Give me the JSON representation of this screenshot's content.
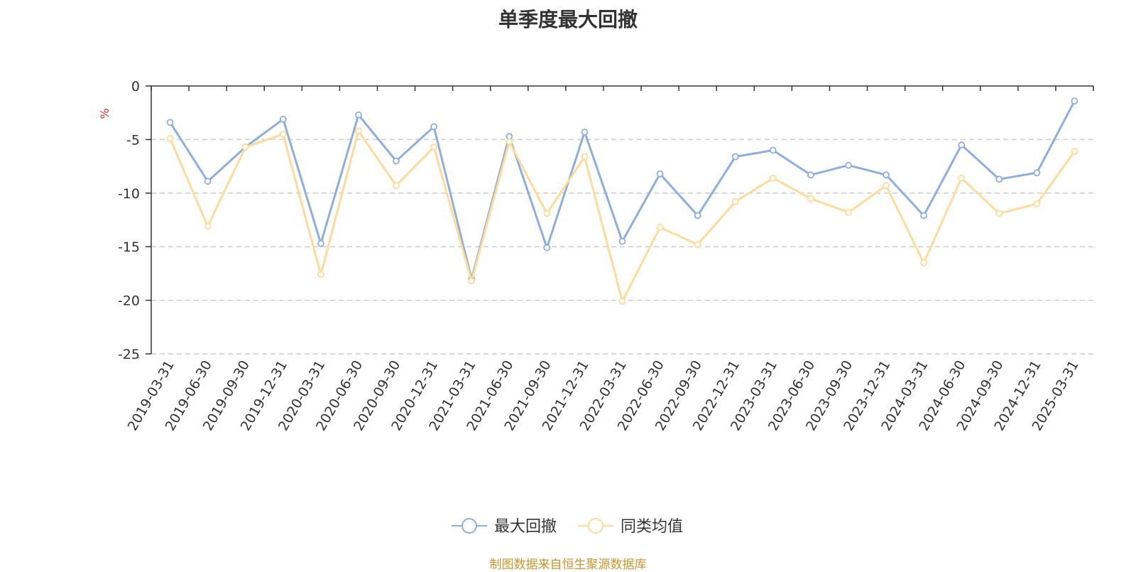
{
  "chart_data": {
    "type": "line",
    "title": "单季度最大回撤",
    "ylabel": "%",
    "xlabel": "",
    "ylim": [
      -25,
      0
    ],
    "yticks": [
      0,
      -5,
      -10,
      -15,
      -20,
      -25
    ],
    "grid": true,
    "legend_position": "bottom-center",
    "categories": [
      "2019-03-31",
      "2019-06-30",
      "2019-09-30",
      "2019-12-31",
      "2020-03-31",
      "2020-06-30",
      "2020-09-30",
      "2020-12-31",
      "2021-03-31",
      "2021-06-30",
      "2021-09-30",
      "2021-12-31",
      "2022-03-31",
      "2022-06-30",
      "2022-09-30",
      "2022-12-31",
      "2023-03-31",
      "2023-06-30",
      "2023-09-30",
      "2023-12-31",
      "2024-03-31",
      "2024-06-30",
      "2024-09-30",
      "2024-12-31",
      "2025-03-31"
    ],
    "series": [
      {
        "name": "最大回撤",
        "color": "#8eaedc",
        "values": [
          -3.4,
          -8.9,
          -5.7,
          -3.1,
          -14.7,
          -2.7,
          -7.0,
          -3.8,
          -18.0,
          -4.7,
          -15.1,
          -4.3,
          -14.5,
          -8.2,
          -12.1,
          -6.6,
          -6.0,
          -8.3,
          -7.4,
          -8.3,
          -12.1,
          -5.5,
          -8.7,
          -8.1,
          -1.4
        ]
      },
      {
        "name": "同类均值",
        "color": "#fddb9a",
        "values": [
          -4.9,
          -13.1,
          -5.7,
          -4.5,
          -17.6,
          -4.2,
          -9.3,
          -5.7,
          -18.2,
          -5.2,
          -11.9,
          -6.6,
          -20.1,
          -13.2,
          -14.8,
          -10.8,
          -8.6,
          -10.5,
          -11.8,
          -9.3,
          -16.5,
          -8.6,
          -11.9,
          -11.0,
          -6.1
        ]
      }
    ]
  },
  "source_note": "制图数据来自恒生聚源数据库",
  "colors": {
    "axis": "#333333",
    "grid": "#cccccc",
    "ylabel": "#e03030",
    "source": "#c8962e"
  }
}
